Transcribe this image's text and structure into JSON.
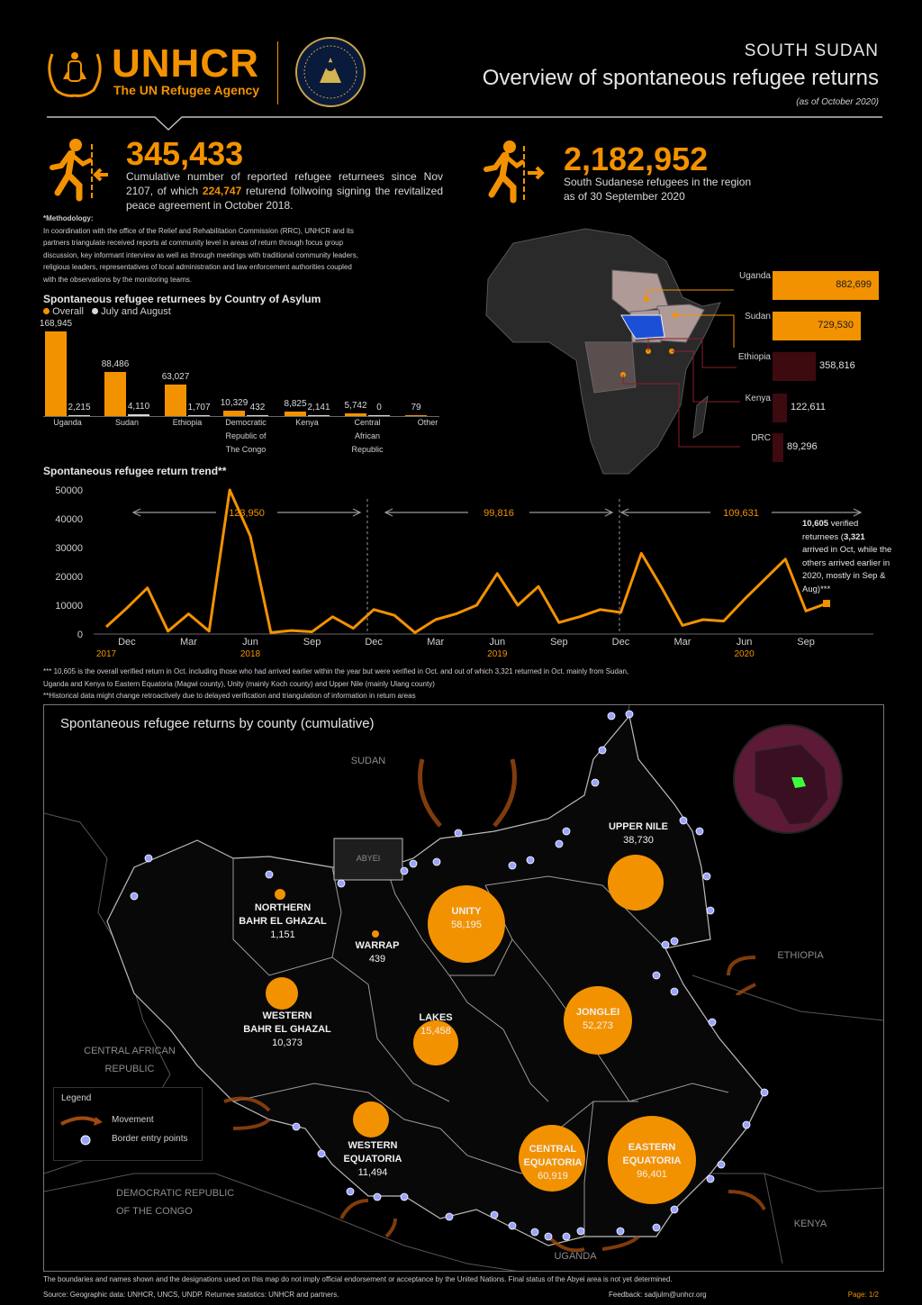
{
  "header": {
    "org_name": "UNHCR",
    "org_sub": "The UN Refugee Agency",
    "country": "SOUTH SUDAN",
    "title": "Overview of spontaneous refugee returns",
    "as_of": "(as of October 2020)"
  },
  "kpi_returnees": {
    "value": "345,433",
    "desc_before": "Cumulative number of reported refugee returnees since Nov 2107, of which ",
    "desc_highlight": "224,747",
    "desc_after": " returend follwoing signing the revitalized peace agreement in October 2018.",
    "icon": "person-return-icon"
  },
  "kpi_refugees": {
    "value": "2,182,952",
    "desc_line1": "South Sudanese refugees in the region",
    "desc_line2": "as of 30 September 2020",
    "icon": "person-leave-icon"
  },
  "methodology": {
    "heading": "*Methodology:",
    "lines": [
      "In coordination with the office of the Relief and Rehabilitation Commission (RRC), UNHCR and its",
      "partners triangulate received reports at community level in areas of return through focus group",
      "discussion, key informant interview as well as through meetings with traditional community leaders,",
      "religious leaders, representatives of local administration and law enforcement authorities coupled",
      "with the observations by the monitoring teams."
    ]
  },
  "country_chart": {
    "title": "Spontaneous refugee returnees by Country of Asylum",
    "legend_overall": "Overall",
    "legend_recent": "July and August",
    "colors": {
      "overall": "#f39200",
      "recent": "#d9d9d9"
    },
    "categories": [
      {
        "lines": [
          "Uganda"
        ],
        "overall": 168945,
        "overall_label": "168,945",
        "recent": 2215,
        "recent_label": "2,215"
      },
      {
        "lines": [
          "Sudan"
        ],
        "overall": 88486,
        "overall_label": "88,486",
        "recent": 4110,
        "recent_label": "4,110"
      },
      {
        "lines": [
          "Ethiopia"
        ],
        "overall": 63027,
        "overall_label": "63,027",
        "recent": 1707,
        "recent_label": "1,707"
      },
      {
        "lines": [
          "Democratic",
          "Republic of",
          "The Congo"
        ],
        "overall": 10329,
        "overall_label": "10,329",
        "recent": 432,
        "recent_label": "432"
      },
      {
        "lines": [
          "Kenya"
        ],
        "overall": 8825,
        "overall_label": "8,825",
        "recent": 2141,
        "recent_label": "2,141"
      },
      {
        "lines": [
          "Central",
          "African",
          "Republic"
        ],
        "overall": 5742,
        "overall_label": "5,742",
        "recent": 0,
        "recent_label": "0"
      },
      {
        "lines": [
          "Other"
        ],
        "overall": 79,
        "overall_label": "79",
        "recent": null,
        "recent_label": ""
      }
    ]
  },
  "region_chart": {
    "colors": {
      "uganda": "#f39200",
      "sudan": "#f39200",
      "ethiopia": "#3d0a10",
      "kenya": "#3d0a10",
      "drc": "#3d0a10"
    },
    "items": [
      {
        "country": "Uganda",
        "value": 882699,
        "label": "882,699"
      },
      {
        "country": "Sudan",
        "value": 729530,
        "label": "729,530"
      },
      {
        "country": "Ethiopia",
        "value": 358816,
        "label": "358,816"
      },
      {
        "country": "Kenya",
        "value": 122611,
        "label": "122,611"
      },
      {
        "country": "DRC",
        "value": 89296,
        "label": "89,296"
      }
    ]
  },
  "chart_data": {
    "type": "line",
    "title": "Spontaneous refugee return trend**",
    "ylim": [
      0,
      50000
    ],
    "y_ticks": [
      "50000",
      "40000",
      "30000",
      "20000",
      "10000",
      "0"
    ],
    "x_ticks": [
      "Dec",
      "Mar",
      "Jun",
      "Sep",
      "Dec",
      "Mar",
      "Jun",
      "Sep",
      "Dec",
      "Mar",
      "Jun",
      "Sep"
    ],
    "years": [
      "2017",
      "2018",
      "2019",
      "2020"
    ],
    "series": [
      {
        "color": "#f39200",
        "values": [
          2500,
          9000,
          16000,
          1000,
          7000,
          1000,
          50000,
          34000,
          500,
          1200,
          800,
          6000,
          2000,
          8500,
          6500,
          500,
          5000,
          7000,
          10000,
          21000,
          10000,
          16500,
          4000,
          6000,
          8500,
          7500,
          28000,
          16000,
          3000,
          5000,
          4500,
          12000,
          19000,
          26000,
          8000,
          10605
        ]
      }
    ],
    "period_totals": [
      "123,950",
      "99,816",
      "109,631"
    ],
    "annotation": {
      "bold": "10,605",
      "text1": " verified",
      "text2": "returnees (",
      "bold2": "3,321",
      "text3": "arrived in Oct, while the",
      "text4": "others arrived earlier in",
      "text5": "2020, mostly in Sep &",
      "text6": "Aug)***"
    }
  },
  "notes": {
    "line1": "*** 10,605 is the overall verified return in Oct. including those who had arrived earlier within the year but were verified in Oct. and out of which 3,321 returned in Oct. mainly from Sudan,",
    "line2": "Uganda and Kenya to Eastern Equatoria (Magwi county), Unity (mainly Koch county) and Upper Nile (mainly Ulang county)",
    "line3": "**Historical data might change retroactively due to delayed verification and triangulation of information in return areas"
  },
  "map": {
    "title": "Spontaneous refugee returns by county (cumulative)",
    "countries": [
      "SUDAN",
      "ETHIOPIA",
      "CENTRAL AFRICAN",
      "REPUBLIC",
      "DEMOCRATIC REPUBLIC",
      "OF THE CONGO",
      "UGANDA",
      "KENYA",
      "ABYEI"
    ],
    "regions": [
      {
        "name": [
          "UPPER NILE"
        ],
        "value": "38,730"
      },
      {
        "name": [
          "UNITY"
        ],
        "value": "58,195"
      },
      {
        "name": [
          "NORTHERN",
          "BAHR EL GHAZAL"
        ],
        "value": "1,151"
      },
      {
        "name": [
          "WARRAP"
        ],
        "value": "439"
      },
      {
        "name": [
          "WESTERN",
          "BAHR EL GHAZAL"
        ],
        "value": "10,373"
      },
      {
        "name": [
          "LAKES"
        ],
        "value": "15,458"
      },
      {
        "name": [
          "JONGLEI"
        ],
        "value": "52,273"
      },
      {
        "name": [
          "WESTERN",
          "EQUATORIA"
        ],
        "value": "11,494"
      },
      {
        "name": [
          "CENTRAL",
          "EQUATORIA"
        ],
        "value": "60,919"
      },
      {
        "name": [
          "EASTERN",
          "EQUATORIA"
        ],
        "value": "96,401"
      }
    ],
    "legend": {
      "title": "Legend",
      "movement": "Movement",
      "border": "Border entry points"
    }
  },
  "footer": {
    "disclaimer": "The boundaries and names shown and the designations used on this map do not imply official endorsement or acceptance by the United Nations. Final status of the Abyei area is not yet determined.",
    "source": "Source: Geographic data: UNHCR, UNCS, UNDP. Returnee statistics: UNHCR and partners.",
    "feedback": "Feedback: sadjulm@unhcr.org",
    "page": "Page: 1/2"
  }
}
